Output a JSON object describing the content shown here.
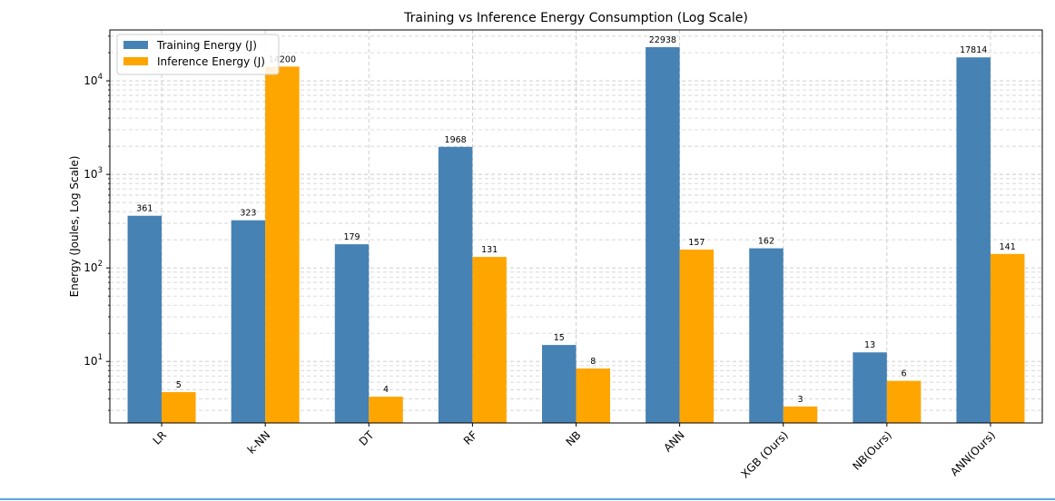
{
  "chart_data": {
    "type": "bar",
    "title": "Training vs Inference Energy Consumption (Log Scale)",
    "xlabel": "",
    "ylabel": "Energy (Joules, Log Scale)",
    "yscale": "log",
    "ylim": [
      2.2,
      35000
    ],
    "yticks": [
      10,
      100,
      1000,
      10000
    ],
    "ytick_labels": [
      {
        "base": "10",
        "exp": "1"
      },
      {
        "base": "10",
        "exp": "2"
      },
      {
        "base": "10",
        "exp": "3"
      },
      {
        "base": "10",
        "exp": "4"
      }
    ],
    "grid": true,
    "legend_position": "top-left",
    "categories": [
      "LR",
      "k-NN",
      "DT",
      "RF",
      "NB",
      "ANN",
      "XGB (Ours)",
      "NB(Ours)",
      "ANN(Ours)"
    ],
    "series": [
      {
        "name": "Training Energy (J)",
        "color": "#4682b4",
        "values": [
          361,
          323,
          179,
          1968,
          15,
          22938,
          162,
          12.5,
          17814
        ],
        "labels": [
          "361",
          "323",
          "179",
          "1968",
          "15",
          "22938",
          "162",
          "13",
          "17814"
        ]
      },
      {
        "name": "Inference Energy (J)",
        "color": "#ffa500",
        "values": [
          4.7,
          14200,
          4.2,
          131,
          8.4,
          157,
          3.3,
          6.2,
          141
        ],
        "labels": [
          "5",
          "14200",
          "4",
          "131",
          "8",
          "157",
          "3",
          "6",
          "141"
        ]
      }
    ]
  }
}
